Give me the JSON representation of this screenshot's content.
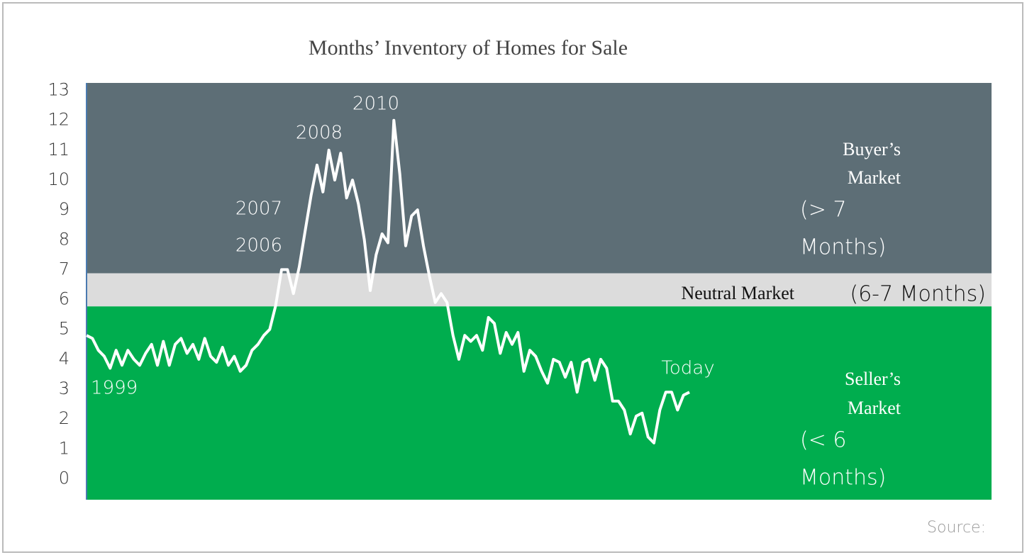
{
  "chart_data": {
    "type": "line",
    "title": "Months’ Inventory of Homes for Sale",
    "ylim": [
      -0.7,
      13.25
    ],
    "yticks": [
      0,
      1,
      2,
      3,
      4,
      5,
      6,
      7,
      8,
      9,
      10,
      11,
      12,
      13
    ],
    "series": [
      {
        "color": "#ffffff",
        "values": [
          4.8,
          4.7,
          4.3,
          4.1,
          3.7,
          4.3,
          3.8,
          4.3,
          4.0,
          3.8,
          4.2,
          4.5,
          3.8,
          4.6,
          3.8,
          4.5,
          4.7,
          4.2,
          4.5,
          4.0,
          4.7,
          4.1,
          3.9,
          4.4,
          3.8,
          4.1,
          3.6,
          3.8,
          4.3,
          4.5,
          4.8,
          5.0,
          5.8,
          7.0,
          7.0,
          6.2,
          7.1,
          8.3,
          9.5,
          10.5,
          9.6,
          11.0,
          10.0,
          10.9,
          9.4,
          10.0,
          9.2,
          8.0,
          6.3,
          7.5,
          8.2,
          7.9,
          12.0,
          10.2,
          7.8,
          8.8,
          9.0,
          7.8,
          6.8,
          5.9,
          6.2,
          5.9,
          4.8,
          4.0,
          4.8,
          4.6,
          4.8,
          4.3,
          5.4,
          5.2,
          4.2,
          4.9,
          4.5,
          4.9,
          3.6,
          4.3,
          4.1,
          3.6,
          3.2,
          4.0,
          3.9,
          3.4,
          3.9,
          2.9,
          3.9,
          4.0,
          3.3,
          4.0,
          3.7,
          2.6,
          2.6,
          2.3,
          1.5,
          2.1,
          2.2,
          1.4,
          1.2,
          2.3,
          2.9,
          2.9,
          2.3,
          2.8,
          2.9
        ]
      }
    ],
    "bands": [
      {
        "from": 6.88,
        "to": 13.25,
        "color": "#5d6e76",
        "label": [
          "Buyer’s",
          "Market"
        ],
        "note": [
          "(> 7",
          "Months)"
        ]
      },
      {
        "from": 5.77,
        "to": 6.88,
        "color": "#dcdcdc",
        "label": [
          "Neutral Market"
        ],
        "note": [
          "(6-7 Months)"
        ]
      },
      {
        "from": -0.7,
        "to": 5.77,
        "color": "#00ad4e",
        "label": [
          "Seller’s",
          "Market"
        ],
        "note": [
          "(< 6",
          "Months)"
        ]
      }
    ],
    "annotations": [
      "1999",
      "2006",
      "2007",
      "2008",
      "2010",
      "Today"
    ],
    "source": "Source:"
  }
}
